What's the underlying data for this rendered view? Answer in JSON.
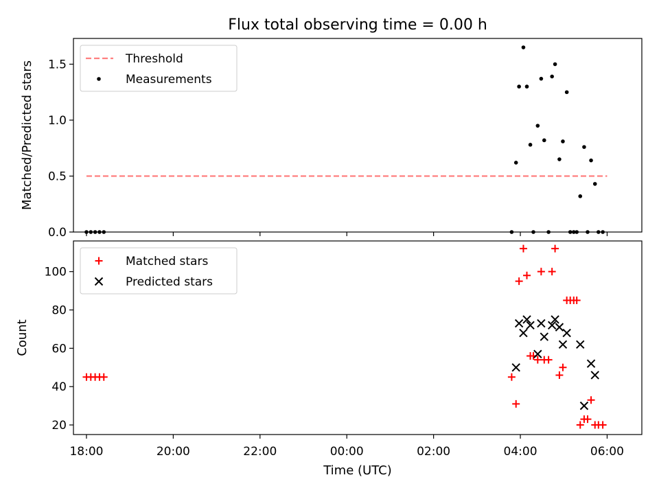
{
  "chart_data": [
    {
      "type": "scatter",
      "title": "Flux total observing time = 0.00 h",
      "xlabel": "",
      "ylabel": "Matched/Predicted stars",
      "x_unit": "hours after 18:00 UTC",
      "xlim": [
        -0.3,
        12.8
      ],
      "ylim": [
        0,
        1.73
      ],
      "yticks": [
        0.0,
        0.5,
        1.0,
        1.5
      ],
      "ytick_labels": [
        "0.0",
        "0.5",
        "1.0",
        "1.5"
      ],
      "legend_position": "top-left",
      "series": [
        {
          "name": "Threshold",
          "kind": "line",
          "color": "#ff7f7f",
          "dashed": true,
          "x": [
            0,
            12
          ],
          "y": [
            0.5,
            0.5
          ]
        },
        {
          "name": "Measurements",
          "kind": "dots",
          "color": "#000000",
          "x": [
            0.0,
            0.1,
            0.2,
            0.3,
            0.4,
            9.8,
            9.9,
            9.97,
            10.07,
            10.15,
            10.23,
            10.3,
            10.4,
            10.48,
            10.55,
            10.65,
            10.73,
            10.8,
            10.9,
            10.98,
            11.07,
            11.15,
            11.23,
            11.3,
            11.38,
            11.47,
            11.55,
            11.63,
            11.72,
            11.8,
            11.9
          ],
          "y": [
            0.0,
            0.0,
            0.0,
            0.0,
            0.0,
            0.0,
            0.62,
            1.3,
            1.65,
            1.3,
            0.78,
            0.0,
            0.95,
            1.37,
            0.82,
            0.0,
            1.39,
            1.5,
            0.65,
            0.81,
            1.25,
            0.0,
            0.0,
            0.0,
            0.32,
            0.76,
            0.0,
            0.64,
            0.43,
            0.0,
            0.0
          ]
        }
      ]
    },
    {
      "type": "scatter",
      "title": "",
      "xlabel": "Time (UTC)",
      "ylabel": "Count",
      "x_unit": "hours after 18:00 UTC",
      "xlim": [
        -0.3,
        12.8
      ],
      "ylim": [
        15,
        116
      ],
      "yticks": [
        20,
        40,
        60,
        80,
        100
      ],
      "ytick_labels": [
        "20",
        "40",
        "60",
        "80",
        "100"
      ],
      "xticks": [
        0,
        2,
        4,
        6,
        8,
        10,
        12
      ],
      "xtick_labels": [
        "18:00",
        "20:00",
        "22:00",
        "00:00",
        "02:00",
        "04:00",
        "06:00"
      ],
      "legend_position": "top-left",
      "series": [
        {
          "name": "Matched stars",
          "kind": "plus",
          "color": "#ff0000",
          "x": [
            0.0,
            0.1,
            0.2,
            0.3,
            0.4,
            9.8,
            9.9,
            9.97,
            10.07,
            10.15,
            10.23,
            10.3,
            10.4,
            10.48,
            10.55,
            10.65,
            10.73,
            10.8,
            10.9,
            10.98,
            11.07,
            11.15,
            11.23,
            11.3,
            11.38,
            11.47,
            11.55,
            11.63,
            11.72,
            11.8,
            11.9
          ],
          "y": [
            45,
            45,
            45,
            45,
            45,
            45,
            31,
            95,
            112,
            98,
            56,
            56,
            54,
            100,
            54,
            54,
            100,
            112,
            46,
            50,
            85,
            85,
            85,
            85,
            20,
            23,
            23,
            33,
            20,
            20,
            20
          ]
        },
        {
          "name": "Predicted stars",
          "kind": "cross",
          "color": "#000000",
          "x": [
            9.9,
            9.97,
            10.07,
            10.15,
            10.23,
            10.4,
            10.48,
            10.55,
            10.73,
            10.8,
            10.9,
            10.98,
            11.07,
            11.38,
            11.47,
            11.63,
            11.72
          ],
          "y": [
            50,
            73,
            68,
            75,
            72,
            57,
            73,
            66,
            72,
            75,
            71,
            62,
            68,
            62,
            30,
            52,
            46
          ]
        }
      ]
    }
  ]
}
